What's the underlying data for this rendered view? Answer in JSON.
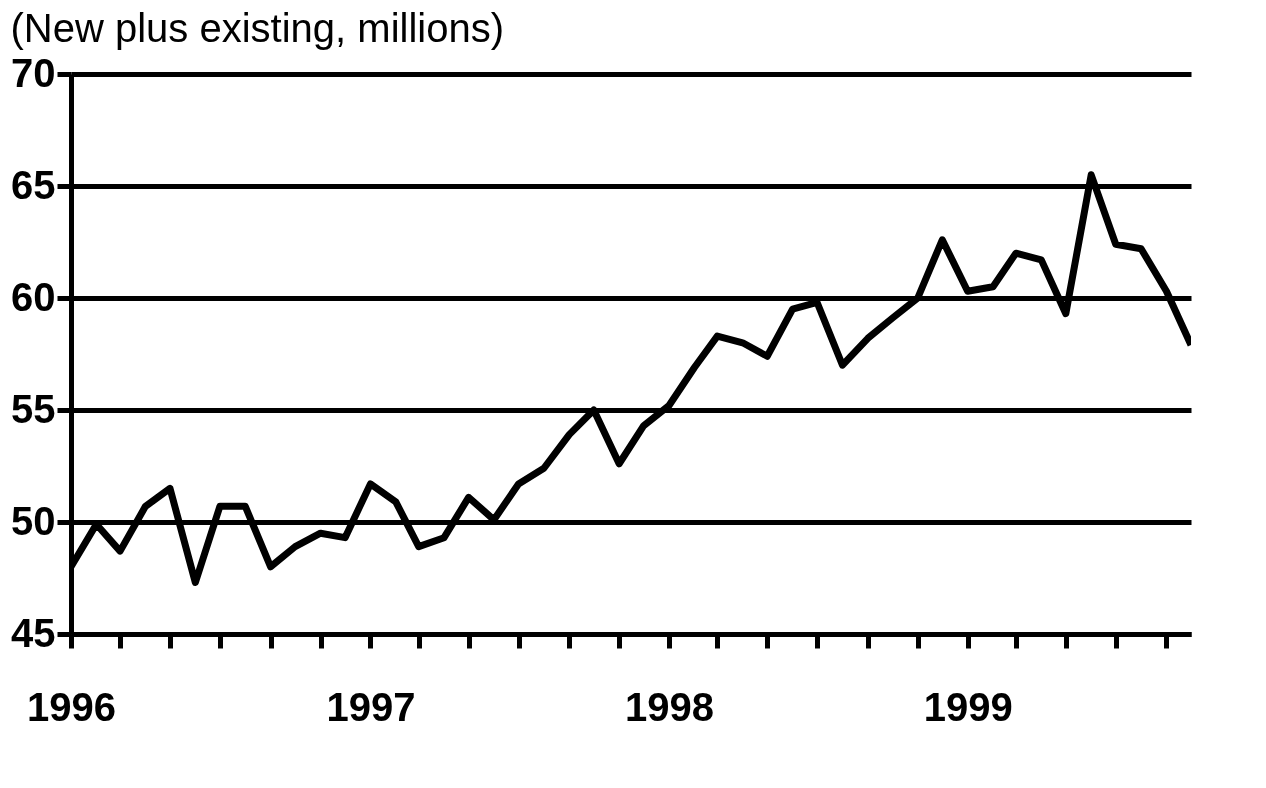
{
  "chart_data": {
    "type": "line",
    "title": "(New plus existing, millions)",
    "x": [
      "1996-01",
      "1996-02",
      "1996-03",
      "1996-04",
      "1996-05",
      "1996-06",
      "1996-07",
      "1996-08",
      "1996-09",
      "1996-10",
      "1996-11",
      "1996-12",
      "1997-01",
      "1997-02",
      "1997-03",
      "1997-04",
      "1997-05",
      "1997-06",
      "1997-07",
      "1997-08",
      "1997-09",
      "1997-10",
      "1997-11",
      "1997-12",
      "1998-01",
      "1998-02",
      "1998-03",
      "1998-04",
      "1998-05",
      "1998-06",
      "1998-07",
      "1998-08",
      "1998-09",
      "1998-10",
      "1998-11",
      "1998-12",
      "1999-01",
      "1999-02",
      "1999-03",
      "1999-04",
      "1999-05",
      "1999-06",
      "1999-07",
      "1999-08",
      "1999-09",
      "1999-10"
    ],
    "series": [
      {
        "color": "#000000",
        "values": [
          48.0,
          49.9,
          48.7,
          50.7,
          51.5,
          47.3,
          50.7,
          50.7,
          48.0,
          48.9,
          49.5,
          49.3,
          51.7,
          50.9,
          48.9,
          49.3,
          51.1,
          50.1,
          51.7,
          52.4,
          53.9,
          55.0,
          52.6,
          54.3,
          55.2,
          56.9,
          58.3,
          58.0,
          57.4,
          59.5,
          59.8,
          57.0,
          58.2,
          59.1,
          60.0,
          62.6,
          60.3,
          60.5,
          62.0,
          61.7,
          59.3,
          65.5,
          62.4,
          62.2,
          60.3,
          57.9
        ]
      }
    ],
    "xlim": [
      "1996-01",
      "1999-10"
    ],
    "xticks": [
      {
        "value": "1996-01",
        "label": "1996"
      },
      {
        "value": "1996-03",
        "label": null
      },
      {
        "value": "1996-05",
        "label": null
      },
      {
        "value": "1996-07",
        "label": null
      },
      {
        "value": "1996-09",
        "label": null
      },
      {
        "value": "1996-11",
        "label": null
      },
      {
        "value": "1997-01",
        "label": "1997"
      },
      {
        "value": "1997-03",
        "label": null
      },
      {
        "value": "1997-05",
        "label": null
      },
      {
        "value": "1997-07",
        "label": null
      },
      {
        "value": "1997-09",
        "label": null
      },
      {
        "value": "1997-11",
        "label": null
      },
      {
        "value": "1998-01",
        "label": "1998"
      },
      {
        "value": "1998-03",
        "label": null
      },
      {
        "value": "1998-05",
        "label": null
      },
      {
        "value": "1998-07",
        "label": null
      },
      {
        "value": "1998-09",
        "label": null
      },
      {
        "value": "1998-11",
        "label": null
      },
      {
        "value": "1999-01",
        "label": "1999"
      },
      {
        "value": "1999-03",
        "label": null
      },
      {
        "value": "1999-05",
        "label": null
      },
      {
        "value": "1999-07",
        "label": null
      },
      {
        "value": "1999-09",
        "label": null
      }
    ],
    "ylim": [
      45,
      70
    ],
    "yticks": [
      45,
      50,
      55,
      60,
      65,
      70
    ],
    "grid": "y",
    "line_style": "solid"
  }
}
